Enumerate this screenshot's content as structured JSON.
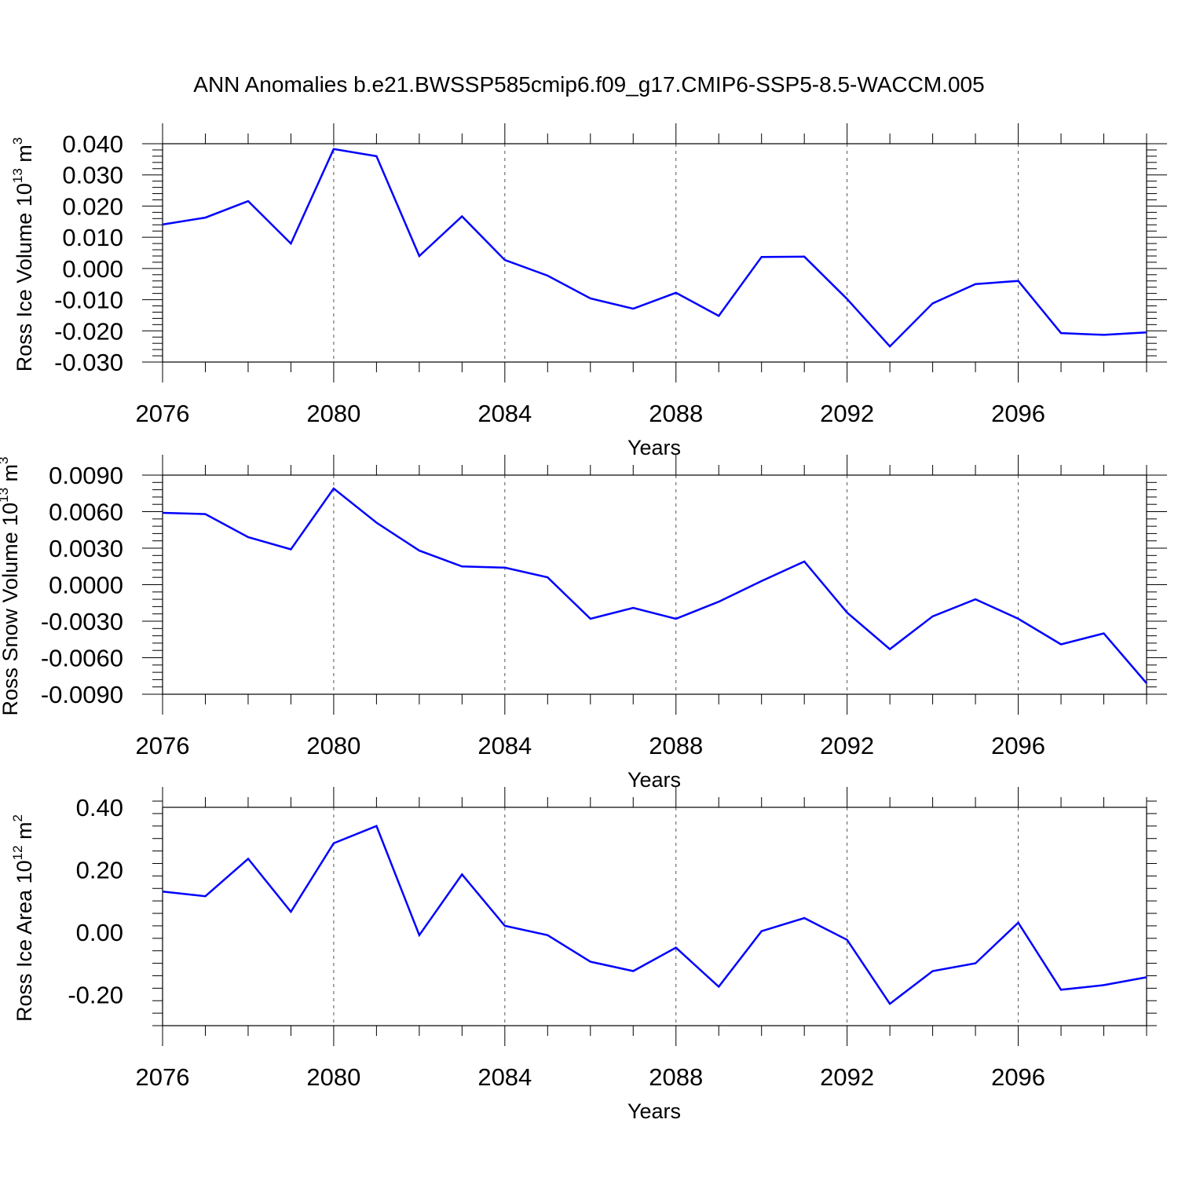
{
  "title": "ANN Anomalies b.e21.BWSSP585cmip6.f09_g17.CMIP6-SSP5-8.5-WACCM.005",
  "colors": {
    "line": "#0000ff",
    "axis": "#000000",
    "grid": "#555555"
  },
  "chart_data": [
    {
      "type": "line",
      "ylabel": "Ross Ice Volume 10",
      "ylabel_sup": "13",
      "ylabel_unit": "m",
      "ylabel_unit_sup": "3",
      "xlabel": "Years",
      "xlim": [
        2076,
        2099
      ],
      "ylim": [
        -0.03,
        0.04
      ],
      "yticks": [
        0.04,
        0.03,
        0.02,
        0.01,
        0.0,
        -0.01,
        -0.02,
        -0.03
      ],
      "ytick_labels": [
        "0.040",
        "0.030",
        "0.020",
        "0.010",
        "0.000",
        "-0.010",
        "-0.020",
        "-0.030"
      ],
      "xticks": [
        2076,
        2080,
        2084,
        2088,
        2092,
        2096
      ],
      "xtick_labels": [
        "2076",
        "2080",
        "2084",
        "2088",
        "2092",
        "2096"
      ],
      "grid": "vertical dashed at major x ticks",
      "series": [
        {
          "x": [
            2076,
            2077,
            2078,
            2079,
            2080,
            2081,
            2082,
            2083,
            2084,
            2085,
            2086,
            2087,
            2088,
            2089,
            2090,
            2091,
            2092,
            2093,
            2094,
            2095,
            2096,
            2097,
            2098,
            2099
          ],
          "values": [
            0.0141,
            0.0163,
            0.0216,
            0.008,
            0.0383,
            0.036,
            0.004,
            0.0167,
            0.0027,
            -0.0023,
            -0.0096,
            -0.0129,
            -0.0078,
            -0.0152,
            0.0037,
            0.0038,
            -0.0098,
            -0.025,
            -0.0112,
            -0.005,
            -0.004,
            -0.0207,
            -0.0213,
            -0.0205
          ]
        }
      ]
    },
    {
      "type": "line",
      "ylabel": "Ross Snow Volume 10",
      "ylabel_sup": "13",
      "ylabel_unit": "m",
      "ylabel_unit_sup": "3",
      "xlabel": "Years",
      "xlim": [
        2076,
        2099
      ],
      "ylim": [
        -0.009,
        0.009
      ],
      "yticks": [
        0.009,
        0.006,
        0.003,
        0.0,
        -0.003,
        -0.006,
        -0.009
      ],
      "ytick_labels": [
        "0.0090",
        "0.0060",
        "0.0030",
        "0.0000",
        "-0.0030",
        "-0.0060",
        "-0.0090"
      ],
      "xticks": [
        2076,
        2080,
        2084,
        2088,
        2092,
        2096
      ],
      "xtick_labels": [
        "2076",
        "2080",
        "2084",
        "2088",
        "2092",
        "2096"
      ],
      "grid": "vertical dashed at major x ticks",
      "series": [
        {
          "x": [
            2076,
            2077,
            2078,
            2079,
            2080,
            2081,
            2082,
            2083,
            2084,
            2085,
            2086,
            2087,
            2088,
            2089,
            2090,
            2091,
            2092,
            2093,
            2094,
            2095,
            2096,
            2097,
            2098,
            2099
          ],
          "values": [
            0.0059,
            0.0058,
            0.0039,
            0.0029,
            0.0079,
            0.0051,
            0.0028,
            0.0015,
            0.0014,
            0.0006,
            -0.0028,
            -0.0019,
            -0.0028,
            -0.0014,
            0.0003,
            0.0019,
            -0.0023,
            -0.0053,
            -0.0026,
            -0.0012,
            -0.0028,
            -0.0049,
            -0.004,
            -0.0081
          ]
        }
      ]
    },
    {
      "type": "line",
      "ylabel": "Ross Ice Area 10",
      "ylabel_sup": "12",
      "ylabel_unit": "m",
      "ylabel_unit_sup": "2",
      "xlabel": "Years",
      "xlim": [
        2076,
        2099
      ],
      "ylim": [
        -0.3,
        0.4
      ],
      "yticks": [
        0.4,
        0.2,
        0.0,
        -0.2
      ],
      "ytick_labels": [
        "0.40",
        "0.20",
        "0.00",
        "-0.20"
      ],
      "xticks": [
        2076,
        2080,
        2084,
        2088,
        2092,
        2096
      ],
      "xtick_labels": [
        "2076",
        "2080",
        "2084",
        "2088",
        "2092",
        "2096"
      ],
      "grid": "vertical dashed at major x ticks",
      "series": [
        {
          "x": [
            2076,
            2077,
            2078,
            2079,
            2080,
            2081,
            2082,
            2083,
            2084,
            2085,
            2086,
            2087,
            2088,
            2089,
            2090,
            2091,
            2092,
            2093,
            2094,
            2095,
            2096,
            2097,
            2098,
            2099
          ],
          "values": [
            0.13,
            0.115,
            0.235,
            0.065,
            0.285,
            0.34,
            -0.01,
            0.185,
            0.02,
            -0.01,
            -0.095,
            -0.125,
            -0.05,
            -0.175,
            0.003,
            0.045,
            -0.025,
            -0.23,
            -0.125,
            -0.1,
            0.03,
            -0.185,
            -0.17,
            -0.145
          ]
        }
      ]
    }
  ]
}
